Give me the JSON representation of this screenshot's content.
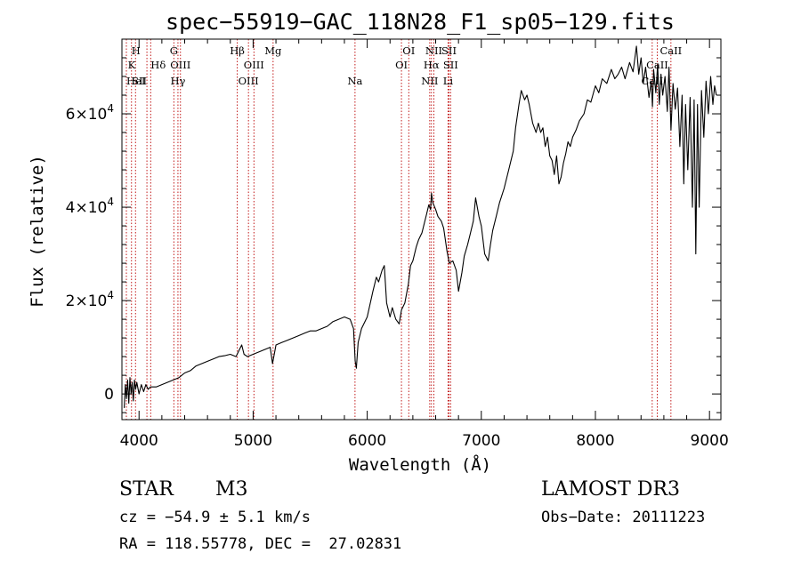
{
  "chart_data": {
    "type": "line",
    "title": "spec−55919−GAC_118N28_F1_sp05−129.fits",
    "xlabel": "Wavelength (Å)",
    "ylabel": "Flux (relative)",
    "xlim": [
      3850,
      9100
    ],
    "ylim": [
      -5500,
      76000
    ],
    "xticks": [
      4000,
      5000,
      6000,
      7000,
      8000,
      9000
    ],
    "xtick_labels": [
      "4000",
      "5000",
      "6000",
      "7000",
      "8000",
      "9000"
    ],
    "yticks": [
      0,
      20000,
      40000,
      60000
    ],
    "ytick_labels": [
      {
        "mantissa": "0",
        "exponent": ""
      },
      {
        "mantissa": "2×10",
        "exponent": "4"
      },
      {
        "mantissa": "4×10",
        "exponent": "4"
      },
      {
        "mantissa": "6×10",
        "exponent": "4"
      }
    ],
    "series": [
      {
        "name": "spectrum",
        "points": [
          [
            3870,
            -3000
          ],
          [
            3880,
            2000
          ],
          [
            3890,
            -1000
          ],
          [
            3900,
            3000
          ],
          [
            3910,
            -2000
          ],
          [
            3920,
            3500
          ],
          [
            3930,
            0
          ],
          [
            3940,
            2500
          ],
          [
            3950,
            -1500
          ],
          [
            3960,
            3000
          ],
          [
            3970,
            1000
          ],
          [
            3980,
            2500
          ],
          [
            4000,
            0
          ],
          [
            4020,
            2000
          ],
          [
            4040,
            500
          ],
          [
            4060,
            2000
          ],
          [
            4080,
            1000
          ],
          [
            4100,
            1500
          ],
          [
            4150,
            1500
          ],
          [
            4200,
            2000
          ],
          [
            4250,
            2500
          ],
          [
            4300,
            3000
          ],
          [
            4350,
            3500
          ],
          [
            4400,
            4500
          ],
          [
            4450,
            5000
          ],
          [
            4500,
            6000
          ],
          [
            4550,
            6500
          ],
          [
            4600,
            7000
          ],
          [
            4650,
            7500
          ],
          [
            4700,
            8000
          ],
          [
            4750,
            8200
          ],
          [
            4800,
            8500
          ],
          [
            4850,
            8000
          ],
          [
            4880,
            9500
          ],
          [
            4900,
            10500
          ],
          [
            4920,
            8500
          ],
          [
            4950,
            8000
          ],
          [
            5000,
            8500
          ],
          [
            5050,
            9000
          ],
          [
            5100,
            9500
          ],
          [
            5150,
            10000
          ],
          [
            5170,
            6500
          ],
          [
            5200,
            10500
          ],
          [
            5250,
            11000
          ],
          [
            5300,
            11500
          ],
          [
            5350,
            12000
          ],
          [
            5400,
            12500
          ],
          [
            5450,
            13000
          ],
          [
            5500,
            13500
          ],
          [
            5550,
            13500
          ],
          [
            5600,
            14000
          ],
          [
            5650,
            14500
          ],
          [
            5700,
            15500
          ],
          [
            5750,
            16000
          ],
          [
            5800,
            16500
          ],
          [
            5850,
            16000
          ],
          [
            5880,
            14000
          ],
          [
            5895,
            7000
          ],
          [
            5905,
            5500
          ],
          [
            5920,
            11000
          ],
          [
            5950,
            14000
          ],
          [
            6000,
            16500
          ],
          [
            6050,
            22000
          ],
          [
            6080,
            25000
          ],
          [
            6100,
            24000
          ],
          [
            6130,
            26500
          ],
          [
            6150,
            27500
          ],
          [
            6170,
            19500
          ],
          [
            6200,
            16500
          ],
          [
            6220,
            18500
          ],
          [
            6250,
            16000
          ],
          [
            6280,
            15000
          ],
          [
            6300,
            18000
          ],
          [
            6330,
            19500
          ],
          [
            6360,
            23500
          ],
          [
            6380,
            27500
          ],
          [
            6400,
            28500
          ],
          [
            6430,
            31500
          ],
          [
            6450,
            33000
          ],
          [
            6480,
            34500
          ],
          [
            6500,
            36500
          ],
          [
            6520,
            38500
          ],
          [
            6540,
            40500
          ],
          [
            6555,
            39500
          ],
          [
            6563,
            43000
          ],
          [
            6575,
            41000
          ],
          [
            6600,
            39500
          ],
          [
            6620,
            38000
          ],
          [
            6650,
            37000
          ],
          [
            6670,
            35500
          ],
          [
            6700,
            30500
          ],
          [
            6720,
            28000
          ],
          [
            6750,
            28500
          ],
          [
            6780,
            26500
          ],
          [
            6800,
            22000
          ],
          [
            6830,
            26000
          ],
          [
            6850,
            29500
          ],
          [
            6880,
            32000
          ],
          [
            6900,
            34000
          ],
          [
            6930,
            37000
          ],
          [
            6950,
            42000
          ],
          [
            6980,
            38000
          ],
          [
            7000,
            36000
          ],
          [
            7030,
            30000
          ],
          [
            7060,
            28500
          ],
          [
            7080,
            32000
          ],
          [
            7100,
            35000
          ],
          [
            7130,
            38000
          ],
          [
            7160,
            41000
          ],
          [
            7200,
            44000
          ],
          [
            7240,
            48000
          ],
          [
            7280,
            52000
          ],
          [
            7300,
            57000
          ],
          [
            7330,
            62000
          ],
          [
            7350,
            65000
          ],
          [
            7380,
            63000
          ],
          [
            7400,
            64000
          ],
          [
            7420,
            62000
          ],
          [
            7450,
            58000
          ],
          [
            7480,
            56000
          ],
          [
            7500,
            58000
          ],
          [
            7520,
            56000
          ],
          [
            7540,
            57000
          ],
          [
            7560,
            53000
          ],
          [
            7580,
            55000
          ],
          [
            7600,
            51000
          ],
          [
            7620,
            50000
          ],
          [
            7640,
            47000
          ],
          [
            7660,
            51000
          ],
          [
            7680,
            45000
          ],
          [
            7700,
            46500
          ],
          [
            7720,
            49500
          ],
          [
            7740,
            51500
          ],
          [
            7760,
            54000
          ],
          [
            7780,
            53000
          ],
          [
            7800,
            55000
          ],
          [
            7830,
            56500
          ],
          [
            7860,
            58500
          ],
          [
            7900,
            60000
          ],
          [
            7930,
            63000
          ],
          [
            7960,
            62500
          ],
          [
            8000,
            66000
          ],
          [
            8030,
            64500
          ],
          [
            8060,
            67500
          ],
          [
            8100,
            66500
          ],
          [
            8140,
            69500
          ],
          [
            8170,
            67500
          ],
          [
            8200,
            68500
          ],
          [
            8230,
            70000
          ],
          [
            8260,
            67500
          ],
          [
            8300,
            71000
          ],
          [
            8330,
            69000
          ],
          [
            8360,
            74500
          ],
          [
            8380,
            68500
          ],
          [
            8400,
            72000
          ],
          [
            8420,
            66500
          ],
          [
            8440,
            70000
          ],
          [
            8470,
            63500
          ],
          [
            8490,
            67000
          ],
          [
            8500,
            61500
          ],
          [
            8510,
            69500
          ],
          [
            8530,
            64500
          ],
          [
            8545,
            70500
          ],
          [
            8560,
            62000
          ],
          [
            8575,
            68500
          ],
          [
            8590,
            64000
          ],
          [
            8610,
            68000
          ],
          [
            8630,
            60500
          ],
          [
            8645,
            70000
          ],
          [
            8662,
            56500
          ],
          [
            8680,
            66500
          ],
          [
            8700,
            61000
          ],
          [
            8720,
            65500
          ],
          [
            8740,
            53000
          ],
          [
            8760,
            64000
          ],
          [
            8775,
            45000
          ],
          [
            8790,
            62000
          ],
          [
            8810,
            48000
          ],
          [
            8830,
            63500
          ],
          [
            8850,
            40000
          ],
          [
            8865,
            63000
          ],
          [
            8880,
            30000
          ],
          [
            8895,
            62000
          ],
          [
            8910,
            40000
          ],
          [
            8930,
            65000
          ],
          [
            8950,
            55000
          ],
          [
            8970,
            67000
          ],
          [
            8990,
            60000
          ],
          [
            9010,
            68000
          ],
          [
            9030,
            62000
          ],
          [
            9045,
            66000
          ],
          [
            9060,
            64000
          ]
        ]
      }
    ],
    "line_markers": [
      {
        "label": "H",
        "wavelength": 3934,
        "row": 1,
        "align": "start"
      },
      {
        "label": "K",
        "wavelength": 3969,
        "row": 2,
        "align": "end"
      },
      {
        "label": "HeI",
        "wavelength": 3889,
        "row": 3,
        "align": "start"
      },
      {
        "label": "SII",
        "wavelength": 4069,
        "row": 3,
        "align": "end"
      },
      {
        "label": "Hδ",
        "wavelength": 4102,
        "row": 2,
        "align": "start"
      },
      {
        "label": "G",
        "wavelength": 4305,
        "row": 1,
        "align": "middle"
      },
      {
        "label": "OIII",
        "wavelength": 4363,
        "row": 2,
        "align": "middle"
      },
      {
        "label": "Hγ",
        "wavelength": 4341,
        "row": 3,
        "align": "middle"
      },
      {
        "label": "Hβ",
        "wavelength": 4861,
        "row": 1,
        "align": "middle"
      },
      {
        "label": "OIII",
        "wavelength": 4959,
        "row": 3,
        "align": "middle"
      },
      {
        "label": "OIII",
        "wavelength": 5007,
        "row": 2,
        "align": "middle"
      },
      {
        "label": "Mg",
        "wavelength": 5175,
        "row": 1,
        "align": "middle"
      },
      {
        "label": "Na",
        "wavelength": 5893,
        "row": 3,
        "align": "middle"
      },
      {
        "label": "OI",
        "wavelength": 6300,
        "row": 2,
        "align": "middle"
      },
      {
        "label": "OI",
        "wavelength": 6364,
        "row": 1,
        "align": "middle"
      },
      {
        "label": "NII",
        "wavelength": 6548,
        "row": 3,
        "align": "middle"
      },
      {
        "label": "NII",
        "wavelength": 6584,
        "row": 1,
        "align": "middle"
      },
      {
        "label": "Hα",
        "wavelength": 6563,
        "row": 2,
        "align": "middle"
      },
      {
        "label": "SII",
        "wavelength": 6717,
        "row": 1,
        "align": "middle"
      },
      {
        "label": "SII",
        "wavelength": 6731,
        "row": 2,
        "align": "middle"
      },
      {
        "label": "Li",
        "wavelength": 6708,
        "row": 3,
        "align": "middle"
      },
      {
        "label": "CaII",
        "wavelength": 8498,
        "row": 3,
        "align": "middle"
      },
      {
        "label": "CaII",
        "wavelength": 8542,
        "row": 2,
        "align": "middle"
      },
      {
        "label": "CaII",
        "wavelength": 8662,
        "row": 1,
        "align": "middle"
      }
    ],
    "marker_color": "#bb0000",
    "line_color": "#000000"
  },
  "info": {
    "object_class": "STAR",
    "subclass": "M3",
    "survey": "LAMOST DR3",
    "redshift": "cz = −54.9 ± 5.1 km/s",
    "obs_date": "Obs−Date: 20111223",
    "coords": "RA = 118.55778, DEC =  27.02831"
  }
}
